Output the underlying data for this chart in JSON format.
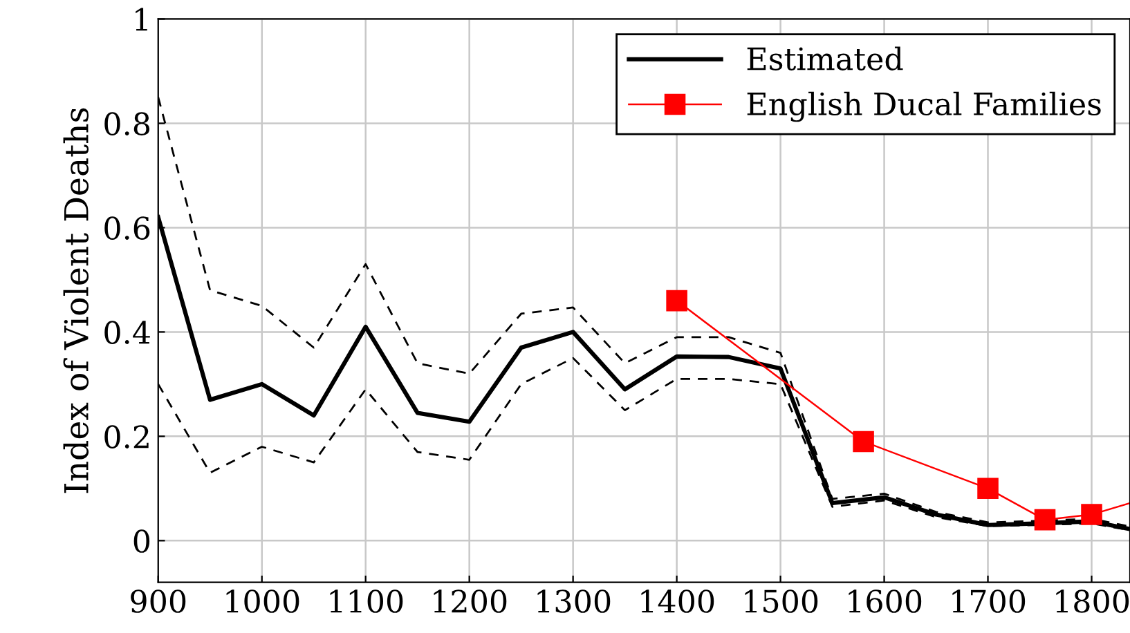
{
  "chart_data": {
    "type": "line",
    "ylabel": "Index of Violent Deaths",
    "xlim": [
      900,
      1837
    ],
    "ylim": [
      -0.08,
      1
    ],
    "xticks": [
      900,
      1000,
      1100,
      1200,
      1300,
      1400,
      1500,
      1600,
      1700,
      1800
    ],
    "yticks": [
      0,
      {
        "value": 0.2,
        "label": "0.2"
      },
      {
        "value": 0.4,
        "label": "0.4"
      },
      {
        "value": 0.6,
        "label": "0.6"
      },
      {
        "value": 0.8,
        "label": "0.8"
      },
      1
    ],
    "grid": true,
    "legend": "top right",
    "series": [
      {
        "name": "Estimated",
        "color": "#000000",
        "marker": "none",
        "line_style": "solid",
        "x": [
          900,
          950,
          1000,
          1050,
          1100,
          1150,
          1200,
          1250,
          1300,
          1350,
          1400,
          1450,
          1500,
          1550,
          1600,
          1650,
          1700,
          1750,
          1800,
          1837
        ],
        "values": [
          0.62,
          0.27,
          0.3,
          0.24,
          0.41,
          0.245,
          0.228,
          0.37,
          0.4,
          0.29,
          0.353,
          0.352,
          0.33,
          0.072,
          0.083,
          0.05,
          0.03,
          0.033,
          0.037,
          0.022
        ]
      },
      {
        "color": "#000000",
        "marker": "none",
        "line_style": "dashed",
        "x": [
          900,
          950,
          1000,
          1050,
          1100,
          1150,
          1200,
          1250,
          1300,
          1350,
          1400,
          1450,
          1500,
          1550,
          1600,
          1650,
          1700,
          1750,
          1800,
          1837
        ],
        "values": [
          0.85,
          0.48,
          0.45,
          0.37,
          0.53,
          0.34,
          0.32,
          0.435,
          0.447,
          0.34,
          0.39,
          0.39,
          0.36,
          0.08,
          0.09,
          0.055,
          0.035,
          0.038,
          0.042,
          0.027
        ]
      },
      {
        "color": "#000000",
        "marker": "none",
        "line_style": "dashed",
        "x": [
          900,
          950,
          1000,
          1050,
          1100,
          1150,
          1200,
          1250,
          1300,
          1350,
          1400,
          1450,
          1500,
          1550,
          1600,
          1650,
          1700,
          1750,
          1800,
          1837
        ],
        "values": [
          0.3,
          0.13,
          0.18,
          0.15,
          0.29,
          0.17,
          0.155,
          0.3,
          0.35,
          0.25,
          0.31,
          0.31,
          0.3,
          0.065,
          0.077,
          0.045,
          0.028,
          0.03,
          0.033,
          0.02
        ]
      },
      {
        "name": "English Ducal Families",
        "color": "#ff0000",
        "marker": "square",
        "line_style": "solid",
        "x": [
          1400,
          1580,
          1700,
          1755,
          1800,
          1837
        ],
        "values": [
          0.46,
          0.19,
          0.1,
          0.04,
          0.05,
          0.072
        ]
      }
    ]
  }
}
